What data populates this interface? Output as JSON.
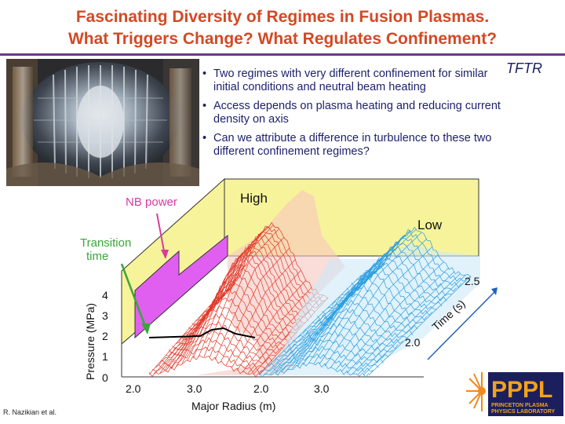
{
  "slide": {
    "title_line1": "Fascinating Diversity of Regimes in Fusion Plasmas.",
    "title_line2": "What Triggers Change? What Regulates Confinement?",
    "machine_label": "TFTR",
    "bullets": [
      "Two regimes with very different confinement for similar initial conditions and neutral beam heating",
      "Access depends on plasma heating and reducing current density on axis",
      "Can we attribute a difference in turbulence to these two different confinement regimes?"
    ],
    "credit": "R. Nazikian et al."
  },
  "figure": {
    "high_label": "High",
    "low_label": "Low",
    "nb_power_label": "NB power",
    "transition_label_line1": "Transition",
    "transition_label_line2": "time",
    "y_axis_label": "Pressure (MPa)",
    "y_ticks": [
      "0",
      "1",
      "2",
      "3",
      "4"
    ],
    "x_axis_label": "Major Radius (m)",
    "x_ticks": [
      "2.0",
      "3.0",
      "2.0",
      "3.0"
    ],
    "time_axis_label": "Time (s)",
    "time_ticks": [
      "2.0",
      "2.5"
    ],
    "colors": {
      "high_mesh": "#e03a2a",
      "low_mesh": "#2a9ee0",
      "panel_yellow": "#f7f39a",
      "nb_panel": "#e15ff0",
      "annotation": "#d93aa0",
      "arrow_green": "#3aa63a",
      "time_arrow": "#2060c0"
    }
  },
  "logo": {
    "text": "PPPL",
    "sub1": "PRINCETON PLASMA",
    "sub2": "PHYSICS LABORATORY"
  }
}
